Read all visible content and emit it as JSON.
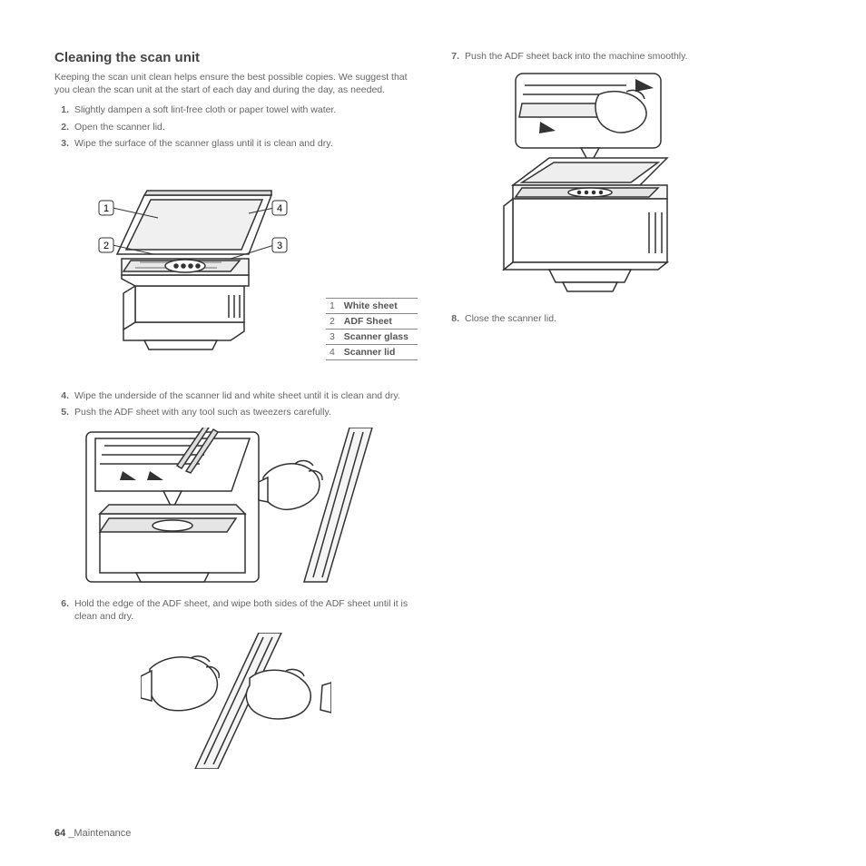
{
  "heading": "Cleaning the scan unit",
  "intro": "Keeping the scan unit clean helps ensure the best possible copies. We suggest that you clean the scan unit at the start of each day and during the day, as needed.",
  "left_steps_a": [
    {
      "n": "1.",
      "t": "Slightly dampen a soft lint-free cloth or paper towel with water."
    },
    {
      "n": "2.",
      "t": "Open the scanner lid."
    },
    {
      "n": "3.",
      "t": "Wipe the surface of the scanner glass until it is clean and dry."
    }
  ],
  "callouts": [
    "1",
    "2",
    "3",
    "4"
  ],
  "legend": [
    {
      "k": "1",
      "v": "White sheet"
    },
    {
      "k": "2",
      "v": "ADF Sheet"
    },
    {
      "k": "3",
      "v": "Scanner glass"
    },
    {
      "k": "4",
      "v": "Scanner lid"
    }
  ],
  "left_steps_b": [
    {
      "n": "4.",
      "t": "Wipe the underside of the scanner lid and white sheet until it is clean and dry."
    },
    {
      "n": "5.",
      "t": "Push the ADF sheet with any tool such as tweezers carefully."
    }
  ],
  "left_steps_c": [
    {
      "n": "6.",
      "t": "Hold the edge of the ADF sheet, and wipe both sides of the ADF sheet until it is clean and dry."
    }
  ],
  "right_steps_a": [
    {
      "n": "7.",
      "t": "Push the ADF sheet back into the machine smoothly."
    }
  ],
  "right_steps_b": [
    {
      "n": "8.",
      "t": "Close the scanner lid."
    }
  ],
  "footer_page": "64",
  "footer_section": "_Maintenance",
  "colors": {
    "text": "#666666",
    "heading": "#444444",
    "rule": "#888888",
    "bg": "#ffffff"
  }
}
